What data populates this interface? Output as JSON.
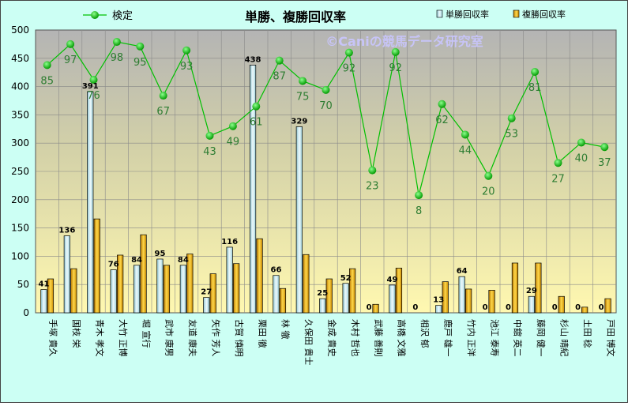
{
  "chart_data": {
    "type": "bar",
    "title": "単勝、複勝回収率",
    "watermark": "©Caniの競馬データ研究室",
    "ylim": [
      0,
      500
    ],
    "yticks": [
      0,
      50,
      100,
      150,
      200,
      250,
      300,
      350,
      400,
      450,
      500
    ],
    "legend_placement": "top",
    "grid": true,
    "categories": [
      "手塚 貴久",
      "国枝 栄",
      "青木 孝文",
      "大竹 正博",
      "堀 宣行",
      "武市 康男",
      "友道 康夫",
      "矢作 芳人",
      "古賀 慎明",
      "栗田 徹",
      "林 徹",
      "久保田 貴士",
      "金成 貴史",
      "木村 哲也",
      "武藤 善則",
      "高橋 文雅",
      "相沢 郁",
      "鹿戸 雄一",
      "竹内 正洋",
      "池江 泰寿",
      "中舘 英二",
      "藤岡 健一",
      "杉山 晴紀",
      "土田 稔",
      "戸田 博文"
    ],
    "series": [
      {
        "name": "単勝回収率",
        "kind": "bar",
        "color": "#b9e4ee",
        "values": [
          41,
          136,
          391,
          76,
          84,
          95,
          84,
          27,
          116,
          438,
          66,
          329,
          25,
          52,
          0,
          49,
          0,
          13,
          64,
          0,
          0,
          29,
          0,
          0,
          0
        ],
        "labels": [
          "41",
          "136",
          "391",
          "76",
          "84",
          "95",
          "84",
          "27",
          "116",
          "438",
          "66",
          "329",
          "25",
          "52",
          "0",
          "49",
          "0",
          "13",
          "64",
          "0",
          "0",
          "29",
          "0",
          "0",
          "0"
        ]
      },
      {
        "name": "複勝回収率",
        "kind": "bar",
        "color": "#e6a000",
        "values": [
          60,
          78,
          166,
          102,
          138,
          84,
          104,
          69,
          87,
          131,
          43,
          103,
          60,
          78,
          15,
          79,
          0,
          55,
          42,
          40,
          88,
          88,
          29,
          10,
          25
        ]
      },
      {
        "name": "検定",
        "kind": "line",
        "color": "#00c000",
        "marker_color": "#00b400",
        "label_color": "#2e7d32",
        "values": [
          438,
          475,
          412,
          479,
          471,
          384,
          464,
          313,
          330,
          365,
          446,
          410,
          394,
          460,
          252,
          461,
          208,
          369,
          315,
          242,
          344,
          426,
          265,
          301,
          293
        ],
        "labels": [
          "85",
          "97",
          "76",
          "98",
          "95",
          "67",
          "93",
          "43",
          "49",
          "61",
          "87",
          "75",
          "70",
          "92",
          "23",
          "92",
          "8",
          "62",
          "44",
          "20",
          "53",
          "81",
          "27",
          "40",
          "37"
        ]
      }
    ]
  }
}
